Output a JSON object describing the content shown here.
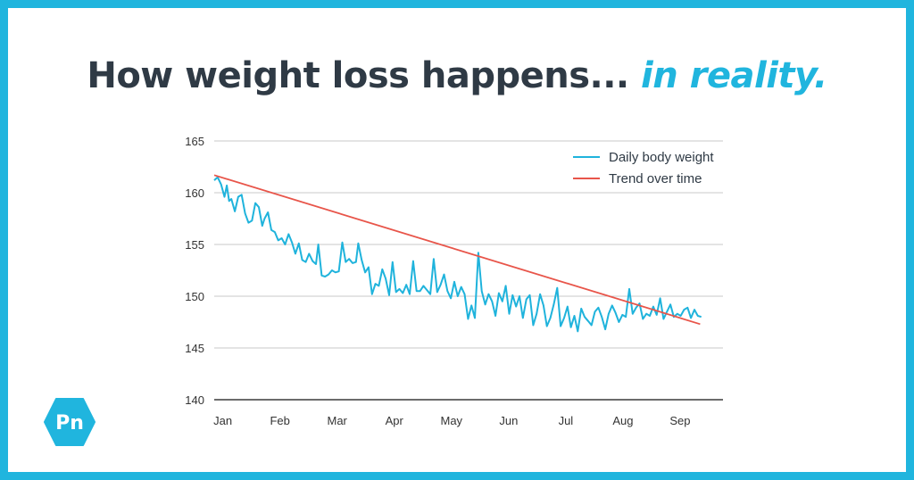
{
  "header": {
    "title_main": "How weight loss happens...",
    "title_accent": "in reality."
  },
  "logo": {
    "text": "Pn"
  },
  "colors": {
    "border": "#20b5de",
    "title": "#2f3a45",
    "accent": "#20b5de",
    "series_daily": "#1fb3dc",
    "series_trend": "#e8554a",
    "grid": "#c9c9c9",
    "baseline": "#3a3a3a",
    "tick_text": "#333333"
  },
  "chart_data": {
    "type": "line",
    "title": "",
    "xlabel": "",
    "ylabel": "",
    "ylim": [
      140,
      165
    ],
    "yticks": [
      140,
      145,
      150,
      155,
      160,
      165
    ],
    "xlim": [
      0,
      8.9
    ],
    "xticks": [
      {
        "label": "Jan",
        "x": 0.15
      },
      {
        "label": "Feb",
        "x": 1.15
      },
      {
        "label": "Mar",
        "x": 2.15
      },
      {
        "label": "Apr",
        "x": 3.15
      },
      {
        "label": "May",
        "x": 4.15
      },
      {
        "label": "Jun",
        "x": 5.15
      },
      {
        "label": "Jul",
        "x": 6.15
      },
      {
        "label": "Aug",
        "x": 7.15
      },
      {
        "label": "Sep",
        "x": 8.15
      }
    ],
    "grid": true,
    "legend_position": "top-right",
    "series": [
      {
        "name": "Daily body weight",
        "x": [
          0.0,
          0.06,
          0.12,
          0.18,
          0.22,
          0.26,
          0.3,
          0.36,
          0.42,
          0.48,
          0.54,
          0.6,
          0.66,
          0.72,
          0.78,
          0.84,
          0.88,
          0.94,
          1.0,
          1.06,
          1.12,
          1.18,
          1.24,
          1.3,
          1.36,
          1.42,
          1.48,
          1.54,
          1.6,
          1.66,
          1.72,
          1.78,
          1.82,
          1.88,
          1.94,
          2.0,
          2.06,
          2.12,
          2.18,
          2.24,
          2.3,
          2.36,
          2.42,
          2.48,
          2.52,
          2.58,
          2.64,
          2.7,
          2.76,
          2.82,
          2.88,
          2.94,
          3.0,
          3.06,
          3.12,
          3.18,
          3.24,
          3.3,
          3.36,
          3.42,
          3.48,
          3.54,
          3.6,
          3.66,
          3.72,
          3.78,
          3.84,
          3.9,
          3.96,
          4.02,
          4.08,
          4.14,
          4.2,
          4.26,
          4.32,
          4.38,
          4.44,
          4.5,
          4.56,
          4.62,
          4.68,
          4.74,
          4.8,
          4.86,
          4.92,
          4.98,
          5.04,
          5.1,
          5.16,
          5.22,
          5.28,
          5.34,
          5.4,
          5.46,
          5.52,
          5.58,
          5.64,
          5.7,
          5.76,
          5.82,
          5.88,
          5.94,
          6.0,
          6.06,
          6.12,
          6.18,
          6.24,
          6.3,
          6.36,
          6.42,
          6.48,
          6.54,
          6.6,
          6.66,
          6.72,
          6.78,
          6.84,
          6.9,
          6.96,
          7.02,
          7.08,
          7.14,
          7.2,
          7.26,
          7.32,
          7.38,
          7.44,
          7.5,
          7.56,
          7.62,
          7.68,
          7.74,
          7.8,
          7.86,
          7.92,
          7.98,
          8.04,
          8.1,
          8.16,
          8.22,
          8.28,
          8.34,
          8.4,
          8.46,
          8.52
        ],
        "values": [
          161.2,
          161.5,
          160.8,
          159.6,
          160.7,
          159.2,
          159.4,
          158.2,
          159.6,
          159.8,
          158.0,
          157.1,
          157.3,
          159.0,
          158.6,
          156.8,
          157.5,
          158.1,
          156.4,
          156.2,
          155.4,
          155.6,
          155.0,
          156.0,
          155.2,
          154.1,
          155.1,
          153.5,
          153.3,
          154.1,
          153.4,
          153.1,
          155.0,
          152.0,
          151.9,
          152.1,
          152.5,
          152.3,
          152.4,
          155.2,
          153.3,
          153.6,
          153.2,
          153.3,
          155.1,
          153.5,
          152.3,
          152.8,
          150.2,
          151.2,
          151.0,
          152.6,
          151.7,
          150.1,
          153.3,
          150.4,
          150.7,
          150.3,
          151.1,
          150.2,
          153.4,
          150.5,
          150.5,
          151.0,
          150.6,
          150.2,
          153.6,
          150.4,
          151.1,
          152.1,
          150.5,
          149.8,
          151.4,
          150.0,
          150.9,
          150.2,
          147.8,
          149.1,
          147.9,
          154.2,
          150.5,
          149.2,
          150.2,
          149.5,
          148.1,
          150.3,
          149.5,
          151.0,
          148.3,
          150.1,
          149.0,
          150.0,
          147.9,
          149.7,
          150.1,
          147.2,
          148.3,
          150.2,
          149.1,
          147.1,
          147.9,
          149.2,
          150.8,
          147.1,
          147.9,
          149.0,
          147.0,
          148.1,
          146.6,
          148.8,
          148.0,
          147.6,
          147.2,
          148.5,
          148.9,
          148.0,
          146.8,
          148.3,
          149.1,
          148.4,
          147.5,
          148.2,
          148.0,
          150.7,
          148.3,
          148.9,
          149.3,
          147.8,
          148.3,
          148.1,
          149.0,
          148.2,
          149.8,
          147.8,
          148.5,
          149.2,
          148.0,
          148.3,
          148.1,
          148.7,
          148.9,
          147.9,
          148.7,
          148.1,
          148.0
        ],
        "color": "#1fb3dc"
      },
      {
        "name": "Trend over time",
        "x": [
          0,
          8.5
        ],
        "values": [
          161.7,
          147.3
        ],
        "color": "#e8554a"
      }
    ]
  }
}
